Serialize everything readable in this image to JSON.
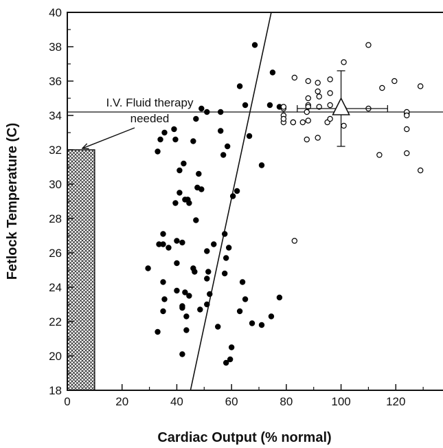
{
  "chart_data": {
    "type": "scatter",
    "title": "",
    "xlabel": "Cardiac Output (% normal)",
    "ylabel": "Fetlock Temperature (C)",
    "xlim": [
      0,
      137
    ],
    "ylim": [
      18,
      40
    ],
    "x_ticks": [
      0,
      20,
      40,
      60,
      80,
      100,
      120
    ],
    "y_ticks": [
      18,
      20,
      22,
      24,
      26,
      28,
      30,
      32,
      34,
      36,
      38,
      40
    ],
    "grid": false,
    "series": [
      {
        "marker": "filled-circle",
        "color": "#000000",
        "points": [
          [
            29.5,
            25.1
          ],
          [
            33.0,
            21.4
          ],
          [
            33.5,
            26.5
          ],
          [
            33.0,
            31.9
          ],
          [
            34.0,
            32.6
          ],
          [
            35.0,
            26.5
          ],
          [
            35.0,
            27.1
          ],
          [
            35.0,
            24.3
          ],
          [
            35.0,
            22.6
          ],
          [
            35.5,
            23.3
          ],
          [
            35.5,
            33.0
          ],
          [
            37.0,
            26.3
          ],
          [
            39.0,
            33.2
          ],
          [
            39.5,
            32.6
          ],
          [
            39.5,
            28.9
          ],
          [
            40.0,
            25.4
          ],
          [
            40.0,
            23.8
          ],
          [
            40.0,
            26.7
          ],
          [
            41.0,
            29.5
          ],
          [
            41.0,
            30.8
          ],
          [
            42.0,
            26.6
          ],
          [
            42.0,
            22.9
          ],
          [
            42.0,
            22.8
          ],
          [
            42.0,
            20.1
          ],
          [
            42.5,
            31.2
          ],
          [
            43.0,
            23.7
          ],
          [
            43.0,
            29.1
          ],
          [
            43.5,
            22.3
          ],
          [
            43.5,
            21.5
          ],
          [
            44.0,
            29.1
          ],
          [
            44.5,
            28.9
          ],
          [
            44.5,
            23.5
          ],
          [
            46.0,
            32.5
          ],
          [
            46.0,
            25.1
          ],
          [
            46.5,
            24.9
          ],
          [
            47.0,
            33.8
          ],
          [
            47.0,
            27.9
          ],
          [
            48.0,
            30.6
          ],
          [
            47.5,
            29.8
          ],
          [
            48.5,
            22.7
          ],
          [
            49.0,
            34.4
          ],
          [
            49.0,
            29.7
          ],
          [
            51.0,
            34.2
          ],
          [
            51.0,
            26.1
          ],
          [
            51.0,
            24.5
          ],
          [
            51.0,
            23.0
          ],
          [
            51.5,
            24.9
          ],
          [
            52.0,
            23.6
          ],
          [
            53.5,
            26.5
          ],
          [
            55.0,
            21.7
          ],
          [
            56.0,
            34.2
          ],
          [
            56.0,
            33.1
          ],
          [
            57.0,
            31.7
          ],
          [
            57.5,
            27.1
          ],
          [
            57.5,
            24.8
          ],
          [
            58.0,
            19.6
          ],
          [
            58.0,
            25.7
          ],
          [
            58.5,
            32.2
          ],
          [
            59.0,
            26.3
          ],
          [
            59.5,
            19.8
          ],
          [
            60.0,
            20.5
          ],
          [
            60.5,
            29.3
          ],
          [
            62.0,
            29.6
          ],
          [
            63.0,
            35.7
          ],
          [
            63.0,
            22.6
          ],
          [
            64.0,
            24.3
          ],
          [
            65.0,
            34.6
          ],
          [
            65.0,
            23.3
          ],
          [
            66.5,
            32.8
          ],
          [
            67.5,
            21.9
          ],
          [
            68.5,
            38.1
          ],
          [
            71.0,
            31.1
          ],
          [
            71.0,
            21.8
          ],
          [
            74.0,
            34.6
          ],
          [
            74.5,
            22.3
          ],
          [
            75.0,
            36.5
          ],
          [
            77.5,
            23.4
          ],
          [
            77.5,
            34.5
          ]
        ]
      },
      {
        "marker": "open-circle",
        "color": "#000000",
        "points": [
          [
            79,
            33.6
          ],
          [
            79,
            34.4
          ],
          [
            79,
            34.0
          ],
          [
            79,
            34.5
          ],
          [
            79,
            33.8
          ],
          [
            82.5,
            33.6
          ],
          [
            82.5,
            33.6
          ],
          [
            83,
            36.2
          ],
          [
            83,
            26.7
          ],
          [
            86,
            33.6
          ],
          [
            87.5,
            32.6
          ],
          [
            87.5,
            34.2
          ],
          [
            88,
            35.0
          ],
          [
            88,
            34.6
          ],
          [
            88,
            34.5
          ],
          [
            88,
            36.0
          ],
          [
            88,
            33.7
          ],
          [
            91.5,
            32.7
          ],
          [
            91.5,
            35.9
          ],
          [
            91.5,
            35.4
          ],
          [
            92,
            35.1
          ],
          [
            92,
            34.5
          ],
          [
            95,
            33.6
          ],
          [
            96,
            36.1
          ],
          [
            96,
            35.3
          ],
          [
            96,
            34.6
          ],
          [
            96,
            33.8
          ],
          [
            101,
            37.1
          ],
          [
            101,
            34.4
          ],
          [
            101,
            34.2
          ],
          [
            101,
            33.4
          ],
          [
            110,
            38.1
          ],
          [
            110,
            34.4
          ],
          [
            114,
            31.7
          ],
          [
            115,
            35.6
          ],
          [
            119.5,
            36.0
          ],
          [
            124,
            34.1
          ],
          [
            124,
            34.2
          ],
          [
            124,
            33.2
          ],
          [
            124,
            31.8
          ],
          [
            124,
            34.0
          ],
          [
            129,
            35.7
          ],
          [
            129,
            30.8
          ]
        ]
      }
    ],
    "reference_lines": [
      {
        "kind": "regression",
        "from": [
          45,
          18
        ],
        "to": [
          74.5,
          40
        ]
      },
      {
        "kind": "horizontal",
        "y": 34.2
      }
    ],
    "mean_marker": {
      "shape": "open-triangle",
      "x": 100,
      "y": 34.4,
      "x_err": [
        84,
        117
      ],
      "y_err": [
        32.2,
        36.6
      ]
    },
    "shaded_region": {
      "x0": 0,
      "x1": 10,
      "y0": 18,
      "y1": 32,
      "pattern": "crosshatch"
    },
    "annotation": {
      "lines": [
        "I.V. Fluid therapy",
        "needed"
      ],
      "arrow_to": [
        10,
        32
      ]
    }
  }
}
